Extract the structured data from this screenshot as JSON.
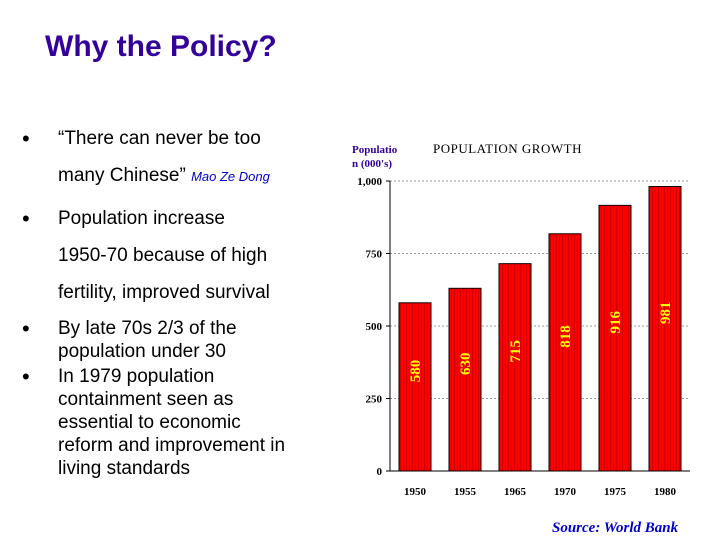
{
  "slide": {
    "title": "Why the Policy?",
    "bullets": {
      "b0": {
        "quote_line1": "“There can never be too",
        "quote_line2": "many Chinese”",
        "author": "Mao Ze Dong"
      },
      "b1": {
        "line1": "Population increase",
        "line2": "1950-70 because of high",
        "line3": "fertility, improved survival"
      },
      "b2": {
        "line1": "By late 70s 2/3 of the",
        "line2": "population under 30"
      },
      "b3": {
        "line1": "In 1979 population",
        "line2": "containment seen as",
        "line3": "essential to economic",
        "line4": "reform and improvement in",
        "line5": "living standards"
      }
    },
    "bullet_symbol": "•",
    "source": "Source: World Bank"
  },
  "chart_data": {
    "type": "bar",
    "title": "POPULATION GROWTH",
    "ylabel_line1": "Populatio",
    "ylabel_line2": "n (000's)",
    "categories": [
      "1950",
      "1955",
      "1965",
      "1970",
      "1975",
      "1980"
    ],
    "values": [
      580,
      630,
      715,
      818,
      916,
      981
    ],
    "ylim": [
      0,
      1000
    ],
    "yticks": [
      0,
      250,
      500,
      750,
      1000
    ],
    "ytick_labels": [
      "0",
      "250",
      "500",
      "750",
      "1,000"
    ],
    "grid": true,
    "colors": {
      "bar_fill": "#ff0000",
      "bar_stroke": "#000000",
      "bar_stripe": "#aa0000",
      "data_label": "#ffff00",
      "grid": "#999999"
    }
  }
}
